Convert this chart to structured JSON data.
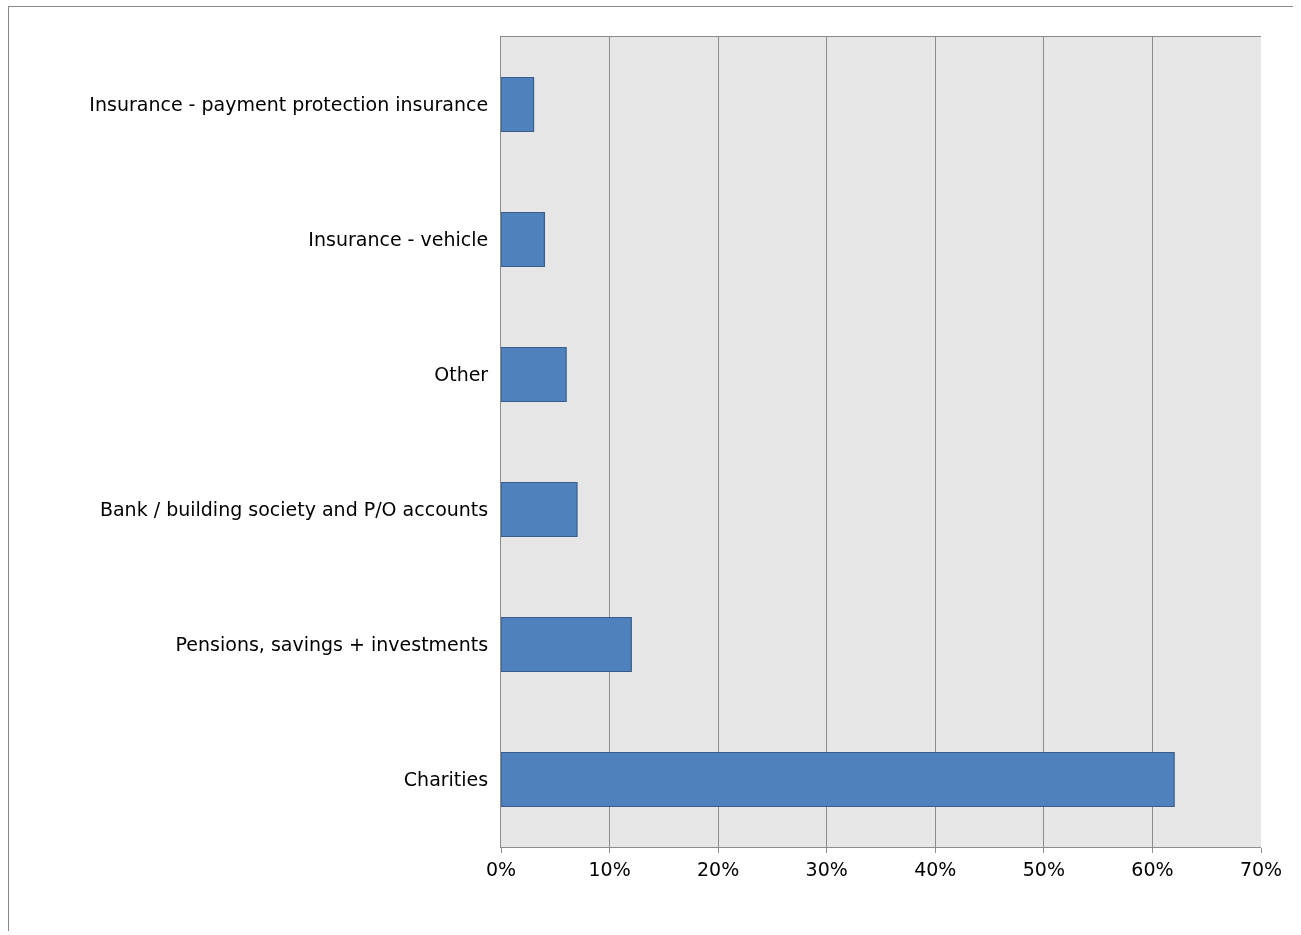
{
  "chart_data": {
    "type": "bar",
    "orientation": "horizontal",
    "categories": [
      "Insurance - payment protection insurance",
      "Insurance - vehicle",
      "Other",
      "Bank / building society and P/O accounts",
      "Pensions, savings + investments",
      "Charities"
    ],
    "values": [
      3,
      4,
      6,
      7,
      12,
      62
    ],
    "color": "#4f81bd",
    "xlim": [
      0,
      70
    ],
    "xticks": [
      {
        "value": 0,
        "label": "0%"
      },
      {
        "value": 10,
        "label": "10%"
      },
      {
        "value": 20,
        "label": "20%"
      },
      {
        "value": 30,
        "label": "30%"
      },
      {
        "value": 40,
        "label": "40%"
      },
      {
        "value": 50,
        "label": "50%"
      },
      {
        "value": 60,
        "label": "60%"
      },
      {
        "value": 70,
        "label": "70%"
      }
    ],
    "grid": "x",
    "legend": false
  }
}
